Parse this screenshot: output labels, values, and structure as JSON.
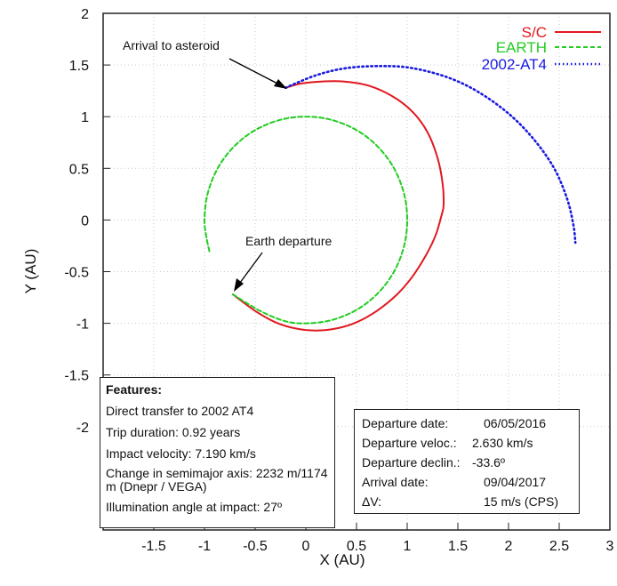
{
  "chart_data": {
    "type": "line",
    "xlabel": "X (AU)",
    "ylabel": "Y (AU)",
    "xlim": [
      -2,
      3
    ],
    "ylim": [
      -3,
      2
    ],
    "x_ticks": [
      "-1.5",
      "-1",
      "-0.5",
      "0",
      "0.5",
      "1",
      "1.5",
      "2",
      "2.5",
      "3"
    ],
    "y_ticks": [
      "2",
      "1.5",
      "1",
      "0.5",
      "0",
      "-0.5",
      "-1",
      "-1.5",
      "-2"
    ],
    "grid": true,
    "legend_position": "top-right",
    "series": [
      {
        "name": "S/C",
        "color": "#e0191f",
        "style": "solid",
        "points": [
          [
            -0.72,
            -0.72
          ],
          [
            -0.5,
            -0.88
          ],
          [
            -0.3,
            -0.99
          ],
          [
            -0.1,
            -1.05
          ],
          [
            0.1,
            -1.07
          ],
          [
            0.3,
            -1.05
          ],
          [
            0.5,
            -0.99
          ],
          [
            0.7,
            -0.88
          ],
          [
            0.9,
            -0.72
          ],
          [
            1.05,
            -0.55
          ],
          [
            1.18,
            -0.35
          ],
          [
            1.28,
            -0.15
          ],
          [
            1.34,
            0.05
          ],
          [
            1.36,
            0.15
          ],
          [
            1.35,
            0.35
          ],
          [
            1.3,
            0.6
          ],
          [
            1.2,
            0.85
          ],
          [
            1.05,
            1.05
          ],
          [
            0.85,
            1.2
          ],
          [
            0.62,
            1.3
          ],
          [
            0.38,
            1.34
          ],
          [
            0.15,
            1.34
          ],
          [
            -0.05,
            1.32
          ],
          [
            -0.2,
            1.28
          ]
        ]
      },
      {
        "name": "EARTH",
        "color": "#22cc22",
        "style": "dashed",
        "points": [
          [
            -0.72,
            -0.72
          ],
          [
            -0.45,
            -0.88
          ],
          [
            -0.2,
            -0.98
          ],
          [
            0.0,
            -1.0
          ],
          [
            0.25,
            -0.97
          ],
          [
            0.5,
            -0.87
          ],
          [
            0.71,
            -0.71
          ],
          [
            0.87,
            -0.5
          ],
          [
            0.97,
            -0.25
          ],
          [
            1.0,
            0.0
          ],
          [
            0.97,
            0.25
          ],
          [
            0.87,
            0.5
          ],
          [
            0.71,
            0.71
          ],
          [
            0.5,
            0.87
          ],
          [
            0.25,
            0.97
          ],
          [
            0.0,
            1.0
          ],
          [
            -0.25,
            0.97
          ],
          [
            -0.5,
            0.87
          ],
          [
            -0.71,
            0.71
          ],
          [
            -0.87,
            0.5
          ],
          [
            -0.97,
            0.25
          ],
          [
            -1.0,
            0.0
          ],
          [
            -0.98,
            -0.17
          ],
          [
            -0.95,
            -0.31
          ]
        ]
      },
      {
        "name": "2002-AT4",
        "color": "#1a1ae0",
        "style": "dotted",
        "points": [
          [
            -0.2,
            1.28
          ],
          [
            0.1,
            1.4
          ],
          [
            0.4,
            1.47
          ],
          [
            0.75,
            1.49
          ],
          [
            1.05,
            1.47
          ],
          [
            1.4,
            1.38
          ],
          [
            1.7,
            1.24
          ],
          [
            2.0,
            1.03
          ],
          [
            2.25,
            0.78
          ],
          [
            2.45,
            0.5
          ],
          [
            2.58,
            0.2
          ],
          [
            2.64,
            -0.05
          ],
          [
            2.66,
            -0.22
          ]
        ]
      }
    ],
    "annotations": [
      {
        "text": "Arrival to asteroid",
        "x": -0.2,
        "y": 1.28
      },
      {
        "text": "Earth departure",
        "x": -0.72,
        "y": -0.72
      }
    ]
  },
  "features_box": {
    "title": "Features:",
    "lines": [
      "Direct transfer to 2002 AT4",
      "Trip duration: 0.92 years",
      "Impact velocity: 7.190 km/s",
      "Change in semimajor axis: 2232 m/1174 m (Dnepr / VEGA)",
      "Illumination angle at impact: 27º"
    ]
  },
  "departure_box": {
    "rows": [
      {
        "key": "Departure date:",
        "value": "06/05/2016"
      },
      {
        "key": "Departure veloc.:",
        "value": "2.630 km/s"
      },
      {
        "key": "Departure declin.:",
        "value": "-33.6º"
      },
      {
        "key": "Arrival date:",
        "value": "09/04/2017"
      },
      {
        "key": "ΔV:",
        "value": "15 m/s (CPS)"
      }
    ]
  }
}
